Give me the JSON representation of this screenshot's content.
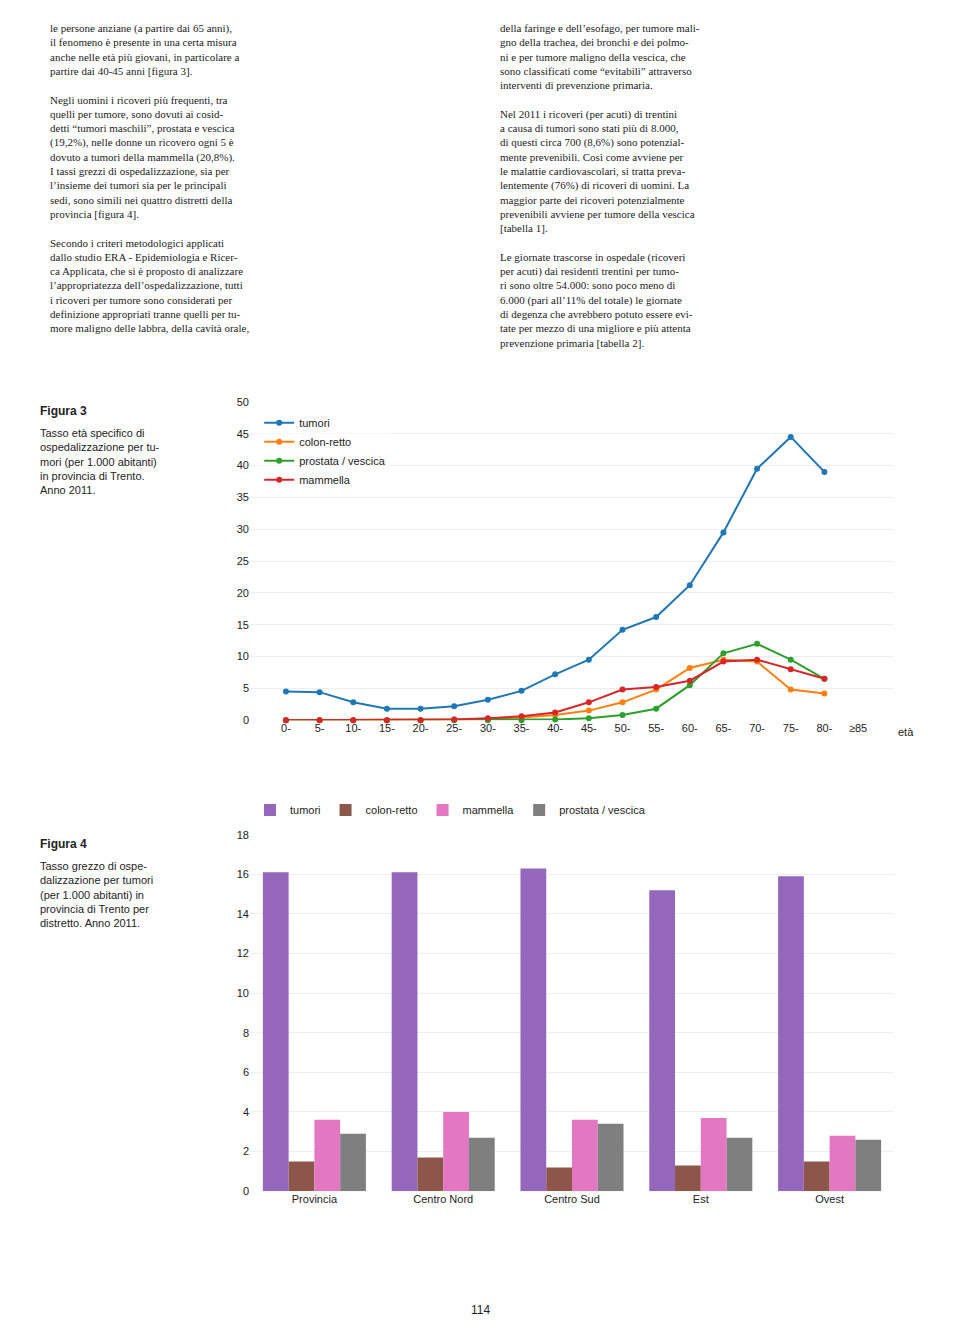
{
  "annotations": [
    "le persone anziane (a partire dai 65 anni),\nil fenomeno è presente in una certa misura\nanche nelle età più giovani, in particolare a\npartire dai 40-45 anni [figura 3].\n\nNegli uomini i ricoveri più frequenti, tra\nquelli per tumore, sono dovuti ai cosid-\ndetti “tumori maschili”, prostata e vescica\n(19,2%), nelle donne un ricovero ogni 5 è\ndovuto a tumori della mammella (20,8%).\nI tassi grezzi di ospedalizzazione, sia per\nl’insieme dei tumori sia per le principali\nsedi, sono simili nei quattro distretti della\nprovincia [figura 4].\n\nSecondo i criteri metodologici applicati\ndallo studio ERA - Epidemiologia e Ricer-\nca Applicata, che si è proposto di analizzare\nl’appropriatezza dell’ospedalizzazione, tutti\ni ricoveri per tumore sono considerati per\ndefinizione appropriati tranne quelli per tu-\nmore maligno delle labbra, della cavità orale,",
    "della faringe e dell’esofago, per tumore mali-\ngno della trachea, dei bronchi e dei polmo-\nni e per tumore maligno della vescica, che\nsono classificati come “evitabili” attraverso\ninterventi di prevenzione primaria.\n\nNel 2011 i ricoveri (per acuti) di trentini\na causa di tumori sono stati più di 8.000,\ndi questi circa 700 (8,6%) sono potenzial-\nmente prevenibili. Così come avviene per\nle malattie cardiovascolari, si tratta preva-\nlentemente (76%) di ricoveri di uomini. La\nmaggior parte dei ricoveri potenzialmente\nprevenibili avviene per tumore della vescica\n[tabella 1].\n\nLe giornate trascorse in ospedale (ricoveri\nper acuti) dai residenti trentini per tumo-\nri sono oltre 54.000: sono poco meno di\n6.000 (pari all’11% del totale) le giornate\ndi degenza che avrebbero potuto essere evi-\ntate per mezzo di una migliore e più attenta\nprevenzione primaria [tabella 2].",
    "114"
  ],
  "chart_data": [
    {
      "type": "line",
      "title": "Figura 3",
      "subtitle": "Tasso età specifico di\nospedalizzazione per tu-\nmori (per 1.000 abitanti)\nin provincia di Trento.\nAnno 2011.",
      "categories": [
        "0-",
        "5-",
        "10-",
        "15-",
        "20-",
        "25-",
        "30-",
        "35-",
        "40-",
        "45-",
        "50-",
        "55-",
        "60-",
        "65-",
        "70-",
        "75-",
        "80-",
        "≥85"
      ],
      "series": [
        {
          "name": "tumori",
          "values": [
            4.5,
            4.4,
            2.8,
            1.8,
            1.8,
            2.2,
            3.2,
            4.6,
            7.2,
            9.5,
            14.2,
            16.2,
            21.2,
            29.5,
            39.5,
            44.5,
            39.0,
            null
          ]
        },
        {
          "name": "colon-retto",
          "values": [
            0.0,
            0.0,
            0.0,
            0.0,
            0.0,
            0.1,
            0.2,
            0.4,
            0.8,
            1.5,
            2.8,
            4.8,
            8.2,
            9.5,
            9.2,
            4.8,
            4.2,
            null
          ]
        },
        {
          "name": "prostata / vescica",
          "values": [
            0.0,
            0.0,
            0.0,
            0.0,
            0.0,
            0.0,
            0.0,
            0.0,
            0.1,
            0.3,
            0.8,
            1.8,
            5.5,
            10.5,
            12.0,
            9.5,
            6.5,
            null
          ]
        },
        {
          "name": "mammella",
          "values": [
            0.0,
            0.0,
            0.0,
            0.0,
            0.0,
            0.1,
            0.3,
            0.6,
            1.2,
            2.8,
            4.8,
            5.2,
            6.2,
            9.2,
            9.5,
            8.0,
            6.5,
            null
          ]
        }
      ],
      "ylim": [
        0,
        50
      ],
      "yticks": [
        0,
        5,
        10,
        15,
        20,
        25,
        30,
        35,
        40,
        45,
        50
      ],
      "grid": true,
      "legend": "upper left",
      "marker": "circle",
      "annotations": [
        "età"
      ]
    },
    {
      "type": "bar",
      "title": "Figura 4",
      "subtitle": "Tasso grezzo di ospe-\ndalizzazione per tumori\n(per 1.000 abitanti) in\nprovincia di Trento per\ndistretto. Anno 2011.",
      "categories": [
        "Provincia",
        "Centro Nord",
        "Centro Sud",
        "Est",
        "Ovest"
      ],
      "series": [
        {
          "name": "tumori",
          "values": [
            16.1,
            16.1,
            16.3,
            15.2,
            15.9
          ]
        },
        {
          "name": "colon-retto",
          "values": [
            1.5,
            1.7,
            1.2,
            1.3,
            1.5
          ]
        },
        {
          "name": "mammella",
          "values": [
            3.6,
            4.0,
            3.6,
            3.7,
            2.8
          ]
        },
        {
          "name": "prostata / vescica",
          "values": [
            2.9,
            2.7,
            3.4,
            2.7,
            2.6
          ]
        }
      ],
      "ylim": [
        0,
        18
      ],
      "yticks": [
        0,
        2,
        4,
        6,
        8,
        10,
        12,
        14,
        16,
        18
      ],
      "grid": true,
      "legend": "top"
    }
  ]
}
